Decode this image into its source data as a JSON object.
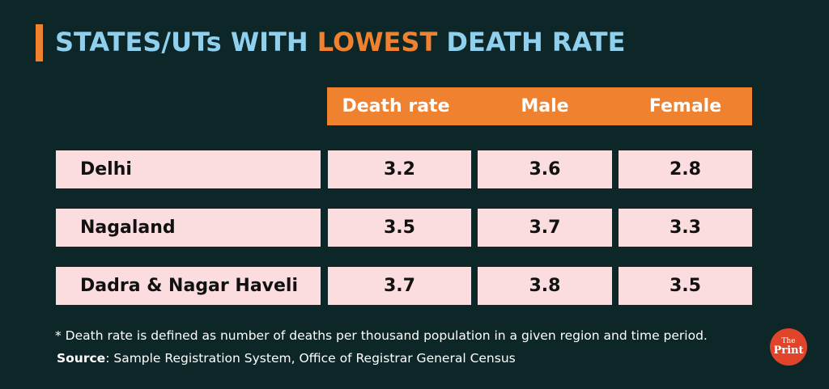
{
  "title": {
    "prefix": "STATES/UTs WITH ",
    "highlight": "LOWEST",
    "suffix": " DEATH RATE"
  },
  "chart_data": {
    "type": "table",
    "columns": [
      "Death rate",
      "Male",
      "Female"
    ],
    "rows": [
      {
        "name": "Delhi",
        "values": [
          "3.2",
          "3.6",
          "2.8"
        ]
      },
      {
        "name": "Nagaland",
        "values": [
          "3.5",
          "3.7",
          "3.3"
        ]
      },
      {
        "name": "Dadra & Nagar Haveli",
        "values": [
          "3.7",
          "3.8",
          "3.5"
        ]
      }
    ]
  },
  "footnote": "* Death rate is defined as number of deaths per thousand population in a given region and time period.",
  "source": {
    "label": "Source",
    "text": ": Sample Registration System, Office of Registrar General Census"
  },
  "logo": {
    "line1": "The",
    "line2": "Print"
  },
  "colors": {
    "background": "#0d2628",
    "accent": "#f0812f",
    "title": "#8fd0ee",
    "cell": "#fbdde0",
    "logo": "#e0452b"
  }
}
